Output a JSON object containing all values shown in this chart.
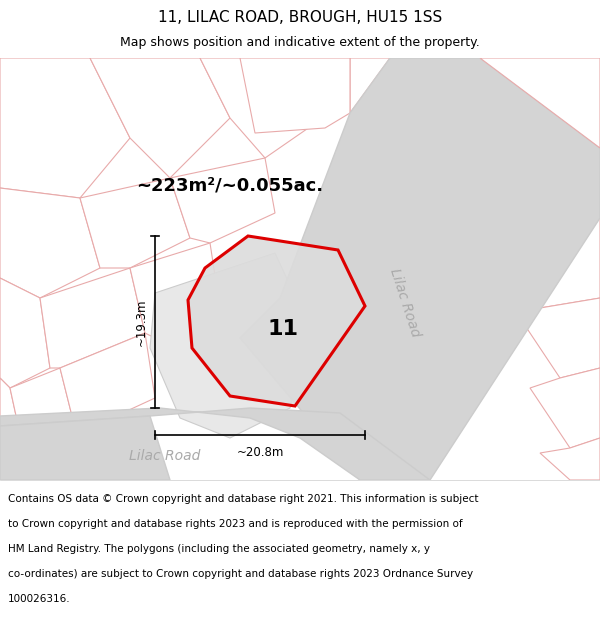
{
  "title": "11, LILAC ROAD, BROUGH, HU15 1SS",
  "subtitle": "Map shows position and indicative extent of the property.",
  "footer_lines": [
    "Contains OS data © Crown copyright and database right 2021. This information is subject",
    "to Crown copyright and database rights 2023 and is reproduced with the permission of",
    "HM Land Registry. The polygons (including the associated geometry, namely x, y",
    "co-ordinates) are subject to Crown copyright and database rights 2023 Ordnance Survey",
    "100026316."
  ],
  "map_bg": "#f0f0f0",
  "plot_bg": "#ffffff",
  "area_text": "~223m²/~0.055ac.",
  "property_number": "11",
  "road_label_bottom": "Lilac Road",
  "road_label_right": "Lilac Road",
  "width_label": "~20.8m",
  "height_label": "~19.3m",
  "polygon_color": "#dd0000",
  "polygon_fill": "#d8d8d8",
  "parcel_fill": "#e8e8e8",
  "parcel_stroke_pink": "#e8aaaa",
  "parcel_stroke_gray": "#cccccc",
  "road_fill": "#d8d8d8",
  "road_stroke": "#bbbbbb",
  "title_fontsize": 11,
  "subtitle_fontsize": 9,
  "footer_fontsize": 7.5,
  "road_text_color": "#aaaaaa",
  "prop_label_color": "#222222"
}
